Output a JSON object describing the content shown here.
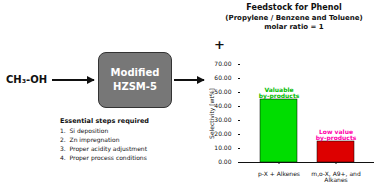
{
  "chart_data": {
    "type": "bar",
    "title": "Feedstock for Phenol",
    "subtitle": "(Propylene / Benzene and Toluene)\nmolar ratio = 1",
    "categories": [
      "p-X + Alkenes",
      "m,o-X, A9+, and\nAlkanes"
    ],
    "values": [
      45.0,
      15.0
    ],
    "colors": [
      "#00dd00",
      "#dd0000"
    ],
    "ylabel": "Selectivity [wt%]",
    "ylim": [
      0,
      70
    ],
    "yticks": [
      {
        "value": 0,
        "label": "0.00"
      },
      {
        "value": 10,
        "label": "10.00"
      },
      {
        "value": 20,
        "label": "20.00"
      },
      {
        "value": 30,
        "label": "30.00"
      },
      {
        "value": 40,
        "label": "40.00"
      },
      {
        "value": 50,
        "label": "50.00"
      },
      {
        "value": 60,
        "label": "60.00"
      },
      {
        "value": 70,
        "label": "70.00"
      }
    ],
    "annotations": [
      {
        "text": "CH₃-OH"
      },
      {
        "text": "Modified\nHZSM-5"
      },
      {
        "text": "+"
      },
      {
        "text": "Essential steps required"
      },
      {
        "text": "1.  Si deposition"
      },
      {
        "text": "2.  Zn impregnation"
      },
      {
        "text": "3.  Proper acidity adjustment"
      },
      {
        "text": "4.  Proper process conditions"
      },
      {
        "text": "Valuable\nby-products",
        "category": "p-X + Alkenes",
        "color": "#00bb00"
      },
      {
        "text": "Low value\nby-products",
        "category": "m,o-X, A9+, and\nAlkanes",
        "color": "#ff00aa"
      }
    ]
  }
}
